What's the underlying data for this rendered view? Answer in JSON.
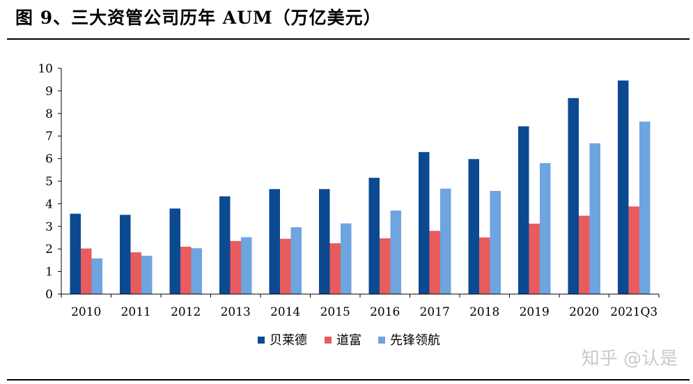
{
  "figure": {
    "title": "图 9、三大资管公司历年 AUM（万亿美元）",
    "watermark": "知乎 @认是"
  },
  "chart_data": {
    "type": "bar",
    "title": "图 9、三大资管公司历年 AUM（万亿美元）",
    "xlabel": "",
    "ylabel": "",
    "ylim": [
      0,
      10
    ],
    "yticks": [
      0,
      1,
      2,
      3,
      4,
      5,
      6,
      7,
      8,
      9,
      10
    ],
    "grid": false,
    "legend_position": "bottom",
    "categories": [
      "2010",
      "2011",
      "2012",
      "2013",
      "2014",
      "2015",
      "2016",
      "2017",
      "2018",
      "2019",
      "2020",
      "2021Q3"
    ],
    "series": [
      {
        "name": "贝莱德",
        "color": "#0b4a91",
        "values": [
          3.56,
          3.51,
          3.79,
          4.33,
          4.65,
          4.65,
          5.15,
          6.29,
          5.98,
          7.43,
          8.68,
          9.46
        ]
      },
      {
        "name": "道富",
        "color": "#e85c5e",
        "values": [
          2.02,
          1.85,
          2.1,
          2.35,
          2.45,
          2.25,
          2.47,
          2.8,
          2.51,
          3.12,
          3.47,
          3.88
        ]
      },
      {
        "name": "先锋领航",
        "color": "#6ea4e0",
        "values": [
          1.58,
          1.7,
          2.03,
          2.52,
          2.96,
          3.13,
          3.7,
          4.67,
          4.57,
          5.8,
          6.68,
          7.64
        ]
      }
    ]
  }
}
